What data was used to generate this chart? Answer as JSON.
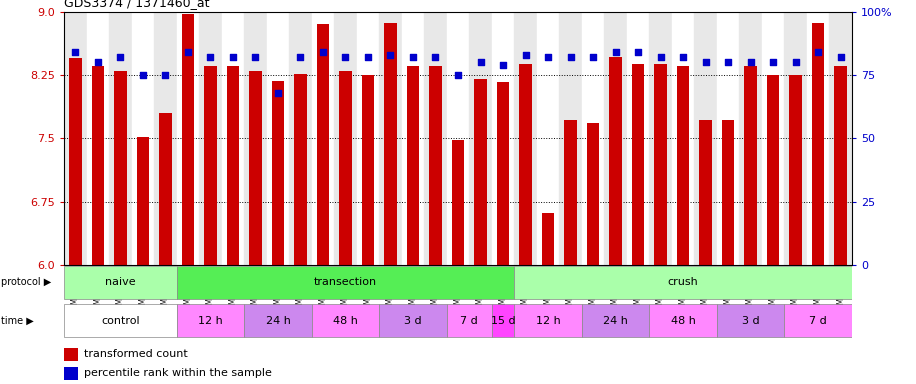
{
  "title": "GDS3374 / 1371460_at",
  "samples": [
    "GSM250998",
    "GSM250999",
    "GSM251000",
    "GSM251001",
    "GSM251002",
    "GSM251003",
    "GSM251004",
    "GSM251005",
    "GSM251006",
    "GSM251007",
    "GSM251008",
    "GSM251009",
    "GSM251010",
    "GSM251011",
    "GSM251012",
    "GSM251013",
    "GSM251014",
    "GSM251015",
    "GSM251016",
    "GSM251017",
    "GSM251018",
    "GSM251019",
    "GSM251020",
    "GSM251021",
    "GSM251022",
    "GSM251023",
    "GSM251024",
    "GSM251025",
    "GSM251026",
    "GSM251027",
    "GSM251028",
    "GSM251029",
    "GSM251030",
    "GSM251031",
    "GSM251032"
  ],
  "transformed_count": [
    8.45,
    8.35,
    8.3,
    7.52,
    7.8,
    8.97,
    8.35,
    8.35,
    8.3,
    8.18,
    8.26,
    8.85,
    8.3,
    8.25,
    8.87,
    8.35,
    8.35,
    7.48,
    8.2,
    8.16,
    8.38,
    6.62,
    7.72,
    7.68,
    8.46,
    8.38,
    8.38,
    8.35,
    7.72,
    7.72,
    8.35,
    8.25,
    8.25,
    8.87,
    8.35
  ],
  "percentile_rank": [
    84,
    80,
    82,
    75,
    75,
    84,
    82,
    82,
    82,
    68,
    82,
    84,
    82,
    82,
    83,
    82,
    82,
    75,
    80,
    79,
    83,
    82,
    82,
    82,
    84,
    84,
    82,
    82,
    80,
    80,
    80,
    80,
    80,
    84,
    82
  ],
  "ylim_left": [
    6.0,
    9.0
  ],
  "ylim_right": [
    0,
    100
  ],
  "yticks_left": [
    6.0,
    6.75,
    7.5,
    8.25,
    9.0
  ],
  "yticks_right": [
    0,
    25,
    50,
    75,
    100
  ],
  "bar_color": "#CC0000",
  "dot_color": "#0000CC",
  "background_color": "#ffffff",
  "protocol_groups": [
    {
      "label": "naive",
      "start": 0,
      "end": 5,
      "color": "#AAFFAA"
    },
    {
      "label": "transection",
      "start": 5,
      "end": 20,
      "color": "#55EE55"
    },
    {
      "label": "crush",
      "start": 20,
      "end": 35,
      "color": "#AAFFAA"
    }
  ],
  "time_groups": [
    {
      "label": "control",
      "start": 0,
      "end": 5,
      "color": "#ffffff"
    },
    {
      "label": "12 h",
      "start": 5,
      "end": 8,
      "color": "#FF88FF"
    },
    {
      "label": "24 h",
      "start": 8,
      "end": 11,
      "color": "#CC88EE"
    },
    {
      "label": "48 h",
      "start": 11,
      "end": 14,
      "color": "#FF88FF"
    },
    {
      "label": "3 d",
      "start": 14,
      "end": 17,
      "color": "#CC88EE"
    },
    {
      "label": "7 d",
      "start": 17,
      "end": 19,
      "color": "#FF88FF"
    },
    {
      "label": "15 d",
      "start": 19,
      "end": 20,
      "color": "#FF44FF"
    },
    {
      "label": "12 h",
      "start": 20,
      "end": 23,
      "color": "#FF88FF"
    },
    {
      "label": "24 h",
      "start": 23,
      "end": 26,
      "color": "#CC88EE"
    },
    {
      "label": "48 h",
      "start": 26,
      "end": 29,
      "color": "#FF88FF"
    },
    {
      "label": "3 d",
      "start": 29,
      "end": 32,
      "color": "#CC88EE"
    },
    {
      "label": "7 d",
      "start": 32,
      "end": 35,
      "color": "#FF88FF"
    }
  ],
  "legend_items": [
    {
      "label": "transformed count",
      "color": "#CC0000"
    },
    {
      "label": "percentile rank within the sample",
      "color": "#0000CC"
    }
  ],
  "col_bg_even": "#e8e8e8",
  "col_bg_odd": "#ffffff"
}
